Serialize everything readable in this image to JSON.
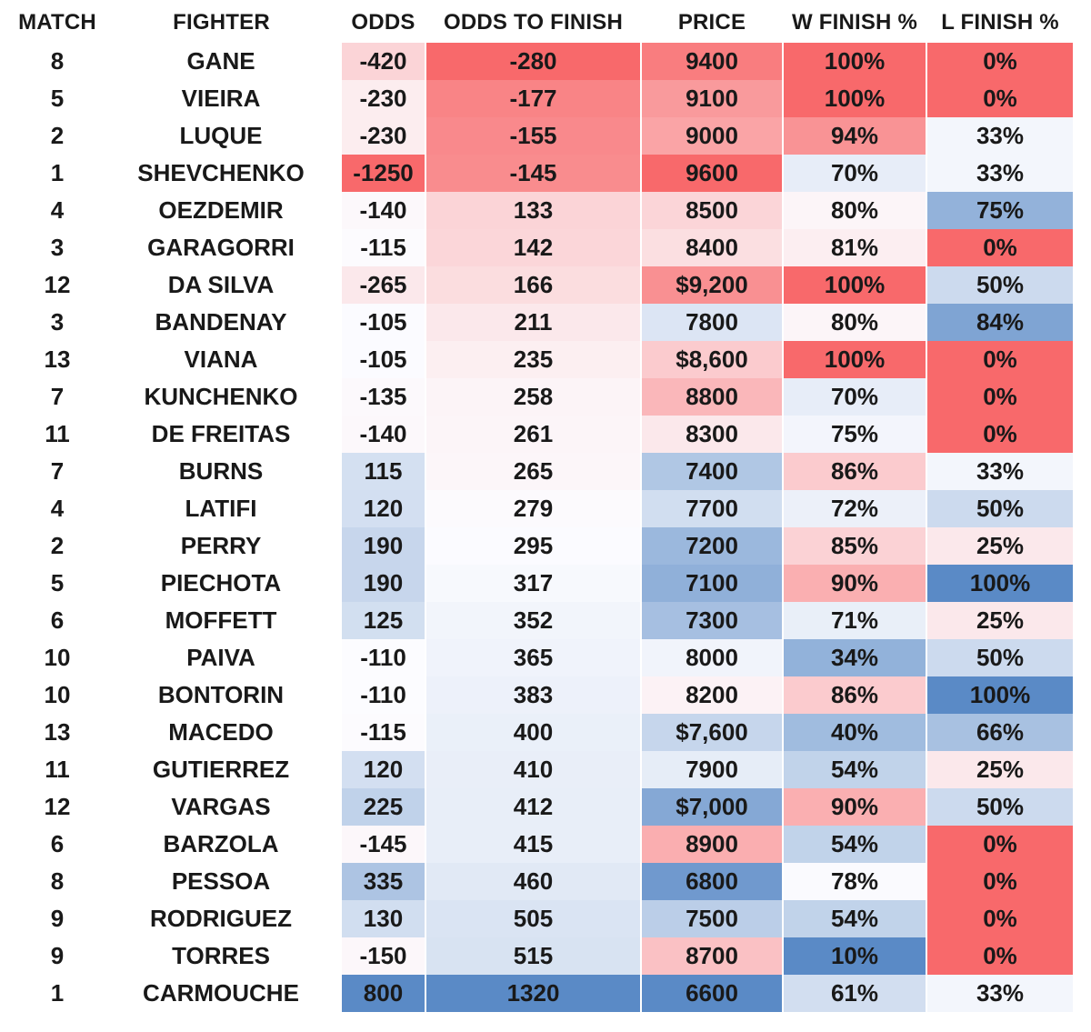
{
  "page": {
    "background": "#FFFFFF",
    "text_color": "#191919"
  },
  "heatmap_scale": {
    "red": "#F8696B",
    "white_mid": "#FCFCFF",
    "blue": "#5A8AC6",
    "midpoint_rule": "50th percentile of column values"
  },
  "table": {
    "columns": [
      {
        "key": "match",
        "label": "MATCH",
        "heat": false
      },
      {
        "key": "fighter",
        "label": "FIGHTER",
        "heat": false
      },
      {
        "key": "odds",
        "label": "ODDS",
        "heat": true,
        "red_at": "min"
      },
      {
        "key": "odds_to_finish",
        "label": "ODDS TO FINISH",
        "heat": true,
        "red_at": "min"
      },
      {
        "key": "price",
        "label": "PRICE",
        "heat": true,
        "red_at": "max"
      },
      {
        "key": "w_finish",
        "label": "W FINISH %",
        "heat": true,
        "red_at": "max"
      },
      {
        "key": "l_finish",
        "label": "L FINISH %",
        "heat": true,
        "red_at": "min"
      }
    ],
    "rows": [
      [
        "8",
        "GANE",
        "-420",
        "-280",
        "9400",
        "100%",
        "0%"
      ],
      [
        "5",
        "VIEIRA",
        "-230",
        "-177",
        "9100",
        "100%",
        "0%"
      ],
      [
        "2",
        "LUQUE",
        "-230",
        "-155",
        "9000",
        "94%",
        "33%"
      ],
      [
        "1",
        "SHEVCHENKO",
        "-1250",
        "-145",
        "9600",
        "70%",
        "33%"
      ],
      [
        "4",
        "OEZDEMIR",
        "-140",
        "133",
        "8500",
        "80%",
        "75%"
      ],
      [
        "3",
        "GARAGORRI",
        "-115",
        "142",
        "8400",
        "81%",
        "0%"
      ],
      [
        "12",
        "DA SILVA",
        "-265",
        "166",
        "$9,200",
        "100%",
        "50%"
      ],
      [
        "3",
        "BANDENAY",
        "-105",
        "211",
        "7800",
        "80%",
        "84%"
      ],
      [
        "13",
        "VIANA",
        "-105",
        "235",
        "$8,600",
        "100%",
        "0%"
      ],
      [
        "7",
        "KUNCHENKO",
        "-135",
        "258",
        "8800",
        "70%",
        "0%"
      ],
      [
        "11",
        "DE FREITAS",
        "-140",
        "261",
        "8300",
        "75%",
        "0%"
      ],
      [
        "7",
        "BURNS",
        "115",
        "265",
        "7400",
        "86%",
        "33%"
      ],
      [
        "4",
        "LATIFI",
        "120",
        "279",
        "7700",
        "72%",
        "50%"
      ],
      [
        "2",
        "PERRY",
        "190",
        "295",
        "7200",
        "85%",
        "25%"
      ],
      [
        "5",
        "PIECHOTA",
        "190",
        "317",
        "7100",
        "90%",
        "100%"
      ],
      [
        "6",
        "MOFFETT",
        "125",
        "352",
        "7300",
        "71%",
        "25%"
      ],
      [
        "10",
        "PAIVA",
        "-110",
        "365",
        "8000",
        "34%",
        "50%"
      ],
      [
        "10",
        "BONTORIN",
        "-110",
        "383",
        "8200",
        "86%",
        "100%"
      ],
      [
        "13",
        "MACEDO",
        "-115",
        "400",
        "$7,600",
        "40%",
        "66%"
      ],
      [
        "11",
        "GUTIERREZ",
        "120",
        "410",
        "7900",
        "54%",
        "25%"
      ],
      [
        "12",
        "VARGAS",
        "225",
        "412",
        "$7,000",
        "90%",
        "50%"
      ],
      [
        "6",
        "BARZOLA",
        "-145",
        "415",
        "8900",
        "54%",
        "0%"
      ],
      [
        "8",
        "PESSOA",
        "335",
        "460",
        "6800",
        "78%",
        "0%"
      ],
      [
        "9",
        "RODRIGUEZ",
        "130",
        "505",
        "7500",
        "54%",
        "0%"
      ],
      [
        "9",
        "TORRES",
        "-150",
        "515",
        "8700",
        "10%",
        "0%"
      ],
      [
        "1",
        "CARMOUCHE",
        "800",
        "1320",
        "6600",
        "61%",
        "33%"
      ]
    ]
  }
}
